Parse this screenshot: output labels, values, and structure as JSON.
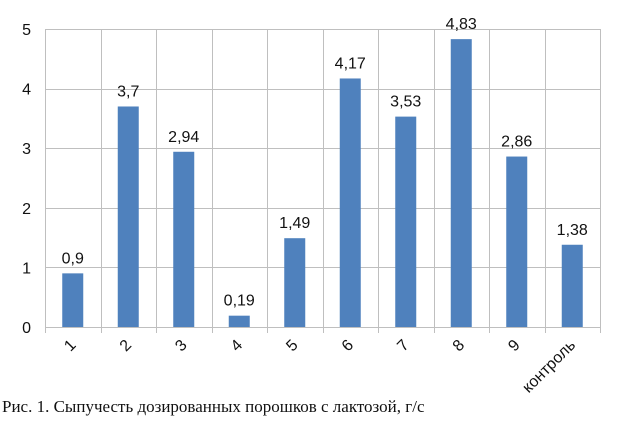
{
  "caption": "Рис. 1. Сыпучесть дозированных порошков с лактозой, г/с",
  "chart_data": {
    "type": "bar",
    "categories": [
      "1",
      "2",
      "3",
      "4",
      "5",
      "6",
      "7",
      "8",
      "9",
      "контроль"
    ],
    "values": [
      0.9,
      3.7,
      2.94,
      0.19,
      1.49,
      4.17,
      3.53,
      4.83,
      2.86,
      1.38
    ],
    "value_labels": [
      "0,9",
      "3,7",
      "2,94",
      "0,19",
      "1,49",
      "4,17",
      "3,53",
      "4,83",
      "2,86",
      "1,38"
    ],
    "yticks": [
      0,
      1,
      2,
      3,
      4,
      5
    ],
    "ylim": [
      0,
      5
    ],
    "grid": true,
    "bar_color": "#4F81BD",
    "grid_color": "#BFBFBF"
  }
}
